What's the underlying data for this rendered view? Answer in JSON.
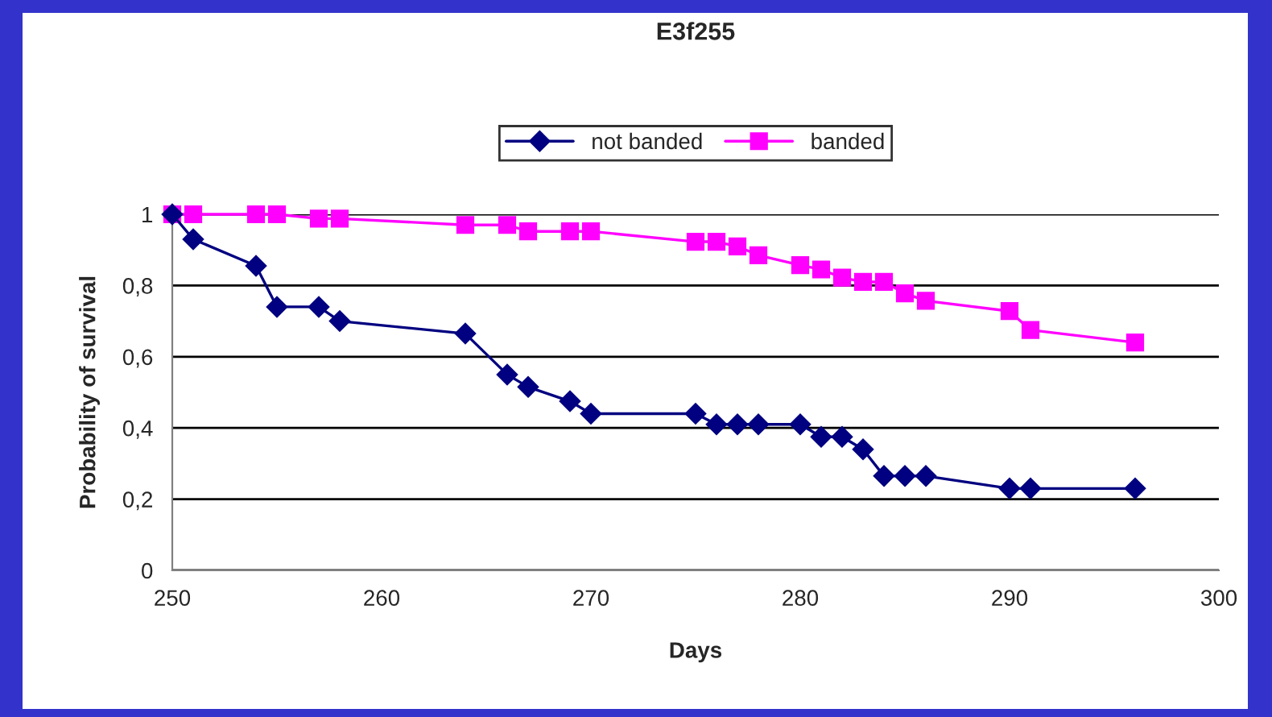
{
  "chart_data": {
    "type": "line",
    "title": "E3f255",
    "xlabel": "Days",
    "ylabel": "Probability of survival",
    "x": [
      250,
      251,
      254,
      255,
      257,
      258,
      264,
      266,
      267,
      269,
      270,
      275,
      276,
      277,
      278,
      280,
      281,
      282,
      283,
      284,
      285,
      286,
      290,
      291,
      296
    ],
    "series": [
      {
        "name": "not banded",
        "color": "#000080",
        "marker": "diamond",
        "values": [
          1,
          0.93,
          0.855,
          0.74,
          0.74,
          0.7,
          0.665,
          0.55,
          0.515,
          0.475,
          0.44,
          0.44,
          0.41,
          0.41,
          0.41,
          0.41,
          0.375,
          0.375,
          0.34,
          0.265,
          0.265,
          0.265,
          0.23,
          0.23,
          0.23
        ]
      },
      {
        "name": "banded",
        "color": "#ff00ff",
        "marker": "square",
        "values": [
          1,
          1,
          1,
          1,
          0.988,
          0.988,
          0.97,
          0.97,
          0.952,
          0.952,
          0.952,
          0.923,
          0.923,
          0.91,
          0.885,
          0.857,
          0.845,
          0.822,
          0.81,
          0.81,
          0.778,
          0.757,
          0.728,
          0.675,
          0.64
        ]
      }
    ],
    "xlim": [
      250,
      300
    ],
    "xticks": [
      250,
      260,
      270,
      280,
      290,
      300
    ],
    "ylim": [
      0,
      1
    ],
    "yticks": [
      {
        "value": 0,
        "label": "0"
      },
      {
        "value": 0.2,
        "label": "0,2"
      },
      {
        "value": 0.4,
        "label": "0,4"
      },
      {
        "value": 0.6,
        "label": "0,6"
      },
      {
        "value": 0.8,
        "label": "0,8"
      },
      {
        "value": 1,
        "label": "1"
      }
    ],
    "grid": "y",
    "legend": "top",
    "line_style": "solid"
  }
}
